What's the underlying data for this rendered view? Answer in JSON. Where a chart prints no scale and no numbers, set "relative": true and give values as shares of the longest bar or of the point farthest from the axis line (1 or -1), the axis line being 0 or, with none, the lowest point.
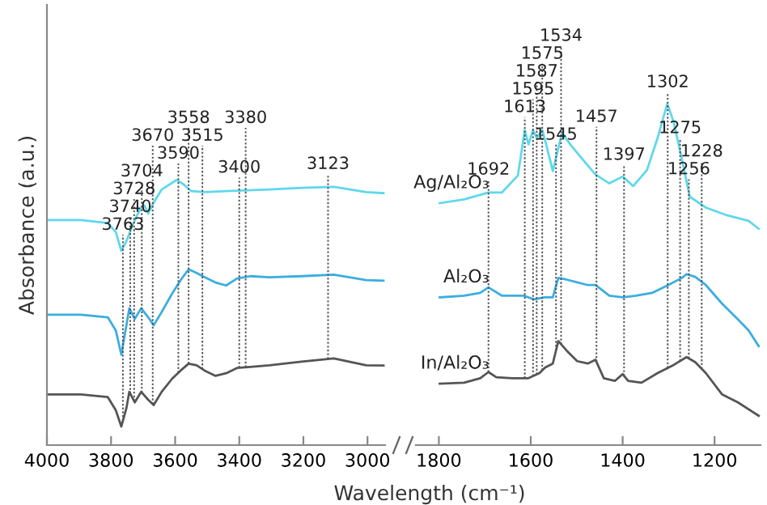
{
  "chart_data": [
    {
      "type": "line",
      "relative": true,
      "ylabel": "Absorbance (a.u.)",
      "xlim": [
        4000,
        2945
      ],
      "xticks": [
        4000,
        3800,
        3600,
        3400,
        3200,
        3000
      ],
      "series": [
        {
          "color": "#5fd8ec",
          "x": [
            4000,
            3894,
            3810,
            3785,
            3768,
            3752,
            3735,
            3718,
            3706,
            3696,
            3684,
            3667,
            3642,
            3595,
            3575,
            3550,
            3508,
            3441,
            3306,
            3206,
            3105,
            3004,
            2950
          ],
          "values": [
            0.849,
            0.849,
            0.837,
            0.803,
            0.733,
            0.769,
            0.823,
            0.869,
            0.894,
            0.904,
            0.873,
            0.914,
            0.964,
            1.0,
            0.984,
            0.958,
            0.954,
            0.958,
            0.964,
            0.97,
            0.974,
            0.954,
            0.95
          ]
        },
        {
          "color": "#3aaee0",
          "x": [
            4000,
            3894,
            3810,
            3785,
            3768,
            3743,
            3726,
            3706,
            3684,
            3667,
            3642,
            3609,
            3583,
            3558,
            3533,
            3508,
            3474,
            3441,
            3407,
            3365,
            3306,
            3206,
            3105,
            3004,
            2950
          ],
          "values": [
            0.492,
            0.492,
            0.482,
            0.432,
            0.341,
            0.516,
            0.476,
            0.516,
            0.482,
            0.452,
            0.502,
            0.572,
            0.622,
            0.663,
            0.649,
            0.633,
            0.613,
            0.602,
            0.628,
            0.637,
            0.633,
            0.637,
            0.643,
            0.622,
            0.62
          ]
        },
        {
          "color": "#555555",
          "x": [
            4000,
            3894,
            3810,
            3785,
            3768,
            3752,
            3743,
            3726,
            3706,
            3684,
            3667,
            3642,
            3609,
            3583,
            3558,
            3533,
            3508,
            3474,
            3441,
            3407,
            3365,
            3306,
            3206,
            3105,
            3004,
            2950
          ],
          "values": [
            0.191,
            0.191,
            0.181,
            0.131,
            0.07,
            0.14,
            0.201,
            0.161,
            0.201,
            0.171,
            0.151,
            0.201,
            0.251,
            0.281,
            0.307,
            0.301,
            0.281,
            0.261,
            0.271,
            0.291,
            0.295,
            0.301,
            0.315,
            0.327,
            0.301,
            0.3
          ]
        }
      ],
      "ref_lines": [
        {
          "axis": "x",
          "value": 3763,
          "label": "3763",
          "line_style": "dotted"
        },
        {
          "axis": "x",
          "value": 3740,
          "label": "3740",
          "line_style": "dotted"
        },
        {
          "axis": "x",
          "value": 3728,
          "label": "3728",
          "line_style": "dotted"
        },
        {
          "axis": "x",
          "value": 3704,
          "label": "3704",
          "line_style": "dotted"
        },
        {
          "axis": "x",
          "value": 3590,
          "label": "3590",
          "line_style": "dotted"
        },
        {
          "axis": "x",
          "value": 3670,
          "label": "3670",
          "line_style": "dotted"
        },
        {
          "axis": "x",
          "value": 3558,
          "label": "3558",
          "line_style": "dotted"
        },
        {
          "axis": "x",
          "value": 3515,
          "label": "3515",
          "line_style": "dotted"
        },
        {
          "axis": "x",
          "value": 3400,
          "label": "3400",
          "line_style": "dotted"
        },
        {
          "axis": "x",
          "value": 3380,
          "label": "3380",
          "line_style": "dotted"
        },
        {
          "axis": "x",
          "value": 3123,
          "label": "3123",
          "line_style": "dotted"
        }
      ]
    },
    {
      "type": "line",
      "relative": true,
      "xlabel": "Wavelength (cm⁻¹)",
      "xlim": [
        1850,
        1100
      ],
      "xticks": [
        1800,
        1600,
        1400,
        1200
      ],
      "series": [
        {
          "name": "Ag/Al₂O₃",
          "color": "#5fd8ec",
          "x": [
            1798,
            1745,
            1692,
            1663,
            1628,
            1613,
            1605,
            1595,
            1587,
            1575,
            1567,
            1552,
            1532,
            1511,
            1482,
            1459,
            1429,
            1400,
            1377,
            1347,
            1324,
            1303,
            1289,
            1271,
            1254,
            1219,
            1172,
            1126,
            1104
          ],
          "values": [
            0.709,
            0.72,
            0.74,
            0.74,
            0.79,
            0.923,
            0.881,
            0.923,
            0.9,
            0.923,
            0.884,
            0.803,
            0.915,
            0.876,
            0.829,
            0.793,
            0.767,
            0.787,
            0.759,
            0.806,
            0.9,
            1.0,
            0.947,
            0.837,
            0.728,
            0.696,
            0.673,
            0.657,
            0.634
          ]
        },
        {
          "name": "Al₂O₃",
          "color": "#3aaee0",
          "x": [
            1798,
            1745,
            1710,
            1692,
            1663,
            1616,
            1593,
            1569,
            1552,
            1540,
            1522,
            1499,
            1476,
            1459,
            1429,
            1400,
            1371,
            1336,
            1301,
            1271,
            1261,
            1242,
            1219,
            1184,
            1149,
            1126,
            1104
          ],
          "values": [
            0.433,
            0.438,
            0.446,
            0.462,
            0.438,
            0.438,
            0.427,
            0.433,
            0.433,
            0.49,
            0.485,
            0.477,
            0.469,
            0.469,
            0.438,
            0.433,
            0.438,
            0.446,
            0.469,
            0.49,
            0.501,
            0.493,
            0.469,
            0.415,
            0.368,
            0.336,
            0.29
          ]
        },
        {
          "name": "In/Al₂O₃",
          "color": "#555555",
          "x": [
            1798,
            1745,
            1710,
            1692,
            1675,
            1640,
            1605,
            1581,
            1569,
            1552,
            1540,
            1522,
            1499,
            1476,
            1459,
            1441,
            1417,
            1400,
            1388,
            1359,
            1324,
            1289,
            1261,
            1242,
            1219,
            1184,
            1149,
            1104
          ],
          "values": [
            0.18,
            0.183,
            0.196,
            0.214,
            0.199,
            0.196,
            0.196,
            0.211,
            0.227,
            0.239,
            0.305,
            0.277,
            0.246,
            0.239,
            0.25,
            0.196,
            0.188,
            0.208,
            0.188,
            0.183,
            0.211,
            0.235,
            0.258,
            0.243,
            0.211,
            0.149,
            0.125,
            0.086
          ]
        }
      ],
      "ref_lines": [
        {
          "axis": "x",
          "value": 1692,
          "label": "1692",
          "line_style": "dotted"
        },
        {
          "axis": "x",
          "value": 1613,
          "label": "1613",
          "line_style": "dotted"
        },
        {
          "axis": "x",
          "value": 1595,
          "label": "1595",
          "line_style": "dotted"
        },
        {
          "axis": "x",
          "value": 1587,
          "label": "1587",
          "line_style": "dotted"
        },
        {
          "axis": "x",
          "value": 1575,
          "label": "1575",
          "line_style": "dotted"
        },
        {
          "axis": "x",
          "value": 1545,
          "label": "1545",
          "line_style": "dotted"
        },
        {
          "axis": "x",
          "value": 1534,
          "label": "1534",
          "line_style": "dotted"
        },
        {
          "axis": "x",
          "value": 1457,
          "label": "1457",
          "line_style": "dotted"
        },
        {
          "axis": "x",
          "value": 1397,
          "label": "1397",
          "line_style": "dotted"
        },
        {
          "axis": "x",
          "value": 1302,
          "label": "1302",
          "line_style": "dotted"
        },
        {
          "axis": "x",
          "value": 1275,
          "label": "1275",
          "line_style": "dotted"
        },
        {
          "axis": "x",
          "value": 1256,
          "label": "1256",
          "line_style": "dotted"
        },
        {
          "axis": "x",
          "value": 1228,
          "label": "1228",
          "line_style": "dotted"
        }
      ]
    }
  ]
}
